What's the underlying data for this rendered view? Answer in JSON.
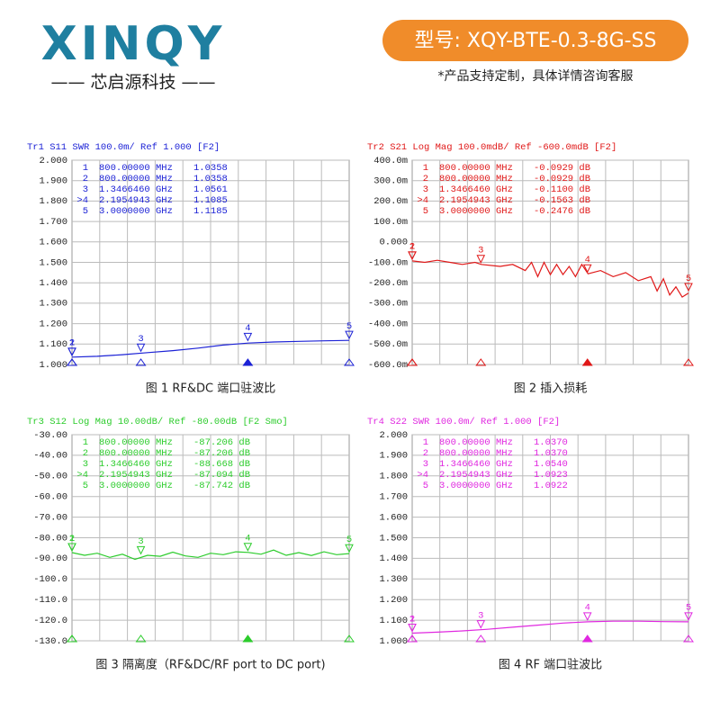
{
  "header": {
    "logo": "XINQY",
    "brand": "—— 芯启源科技 ——",
    "model": "型号: XQY-BTE-0.3-8G-SS",
    "note": "*产品支持定制，具体详情咨询客服"
  },
  "chart_data": [
    {
      "type": "line",
      "title": "Tr1 S11 SWR 100.0m/ Ref 1.000 [F2]",
      "caption": "图 1 RF&DC 端口驻波比",
      "color": "#1c22d6",
      "xlim": [
        0.8,
        3.0
      ],
      "ylim": [
        1.0,
        2.0
      ],
      "yticks": [
        {
          "value": 2.0,
          "label": "2.000"
        },
        {
          "value": 1.9,
          "label": "1.900"
        },
        {
          "value": 1.8,
          "label": "1.800"
        },
        {
          "value": 1.7,
          "label": "1.700"
        },
        {
          "value": 1.6,
          "label": "1.600"
        },
        {
          "value": 1.5,
          "label": "1.500"
        },
        {
          "value": 1.4,
          "label": "1.400"
        },
        {
          "value": 1.3,
          "label": "1.300"
        },
        {
          "value": 1.2,
          "label": "1.200"
        },
        {
          "value": 1.1,
          "label": "1.100"
        },
        {
          "value": 1.0,
          "label": "1.000"
        }
      ],
      "x": [
        0.8,
        1.0,
        1.2,
        1.4,
        1.6,
        1.8,
        2.0,
        2.2,
        2.4,
        2.6,
        2.8,
        3.0
      ],
      "values": [
        1.036,
        1.04,
        1.048,
        1.058,
        1.068,
        1.08,
        1.095,
        1.105,
        1.11,
        1.113,
        1.116,
        1.118
      ],
      "markers": [
        {
          "id": "1",
          "tag": "1",
          "x": 0.8,
          "x_label": "800.00000 MHz",
          "y": 1.0358,
          "y_label": "1.0358"
        },
        {
          "id": "2",
          "tag": "2",
          "x": 0.8,
          "x_label": "800.00000 MHz",
          "y": 1.0358,
          "y_label": "1.0358"
        },
        {
          "id": "3",
          "tag": "3",
          "x": 1.346646,
          "x_label": "1.3466460 GHz",
          "y": 1.0561,
          "y_label": "1.0561"
        },
        {
          "id": ">4",
          "tag": "4",
          "x": 2.1954943,
          "x_label": "2.1954943 GHz",
          "y": 1.1085,
          "y_label": "1.1085"
        },
        {
          "id": "5",
          "tag": "5",
          "x": 3.0,
          "x_label": "3.0000000 GHz",
          "y": 1.1185,
          "y_label": "1.1185"
        }
      ]
    },
    {
      "type": "line",
      "title": "Tr2 S21 Log Mag 100.0mdB/ Ref -600.0mdB [F2]",
      "caption": "图 2 插入损耗",
      "color": "#e01818",
      "xlim": [
        0.8,
        3.0
      ],
      "ylim": [
        -0.6,
        0.4
      ],
      "yticks": [
        {
          "value": 0.4,
          "label": "400.0m"
        },
        {
          "value": 0.3,
          "label": "300.0m"
        },
        {
          "value": 0.2,
          "label": "200.0m"
        },
        {
          "value": 0.1,
          "label": "100.0m"
        },
        {
          "value": 0,
          "label": "0.000"
        },
        {
          "value": -0.1,
          "label": "-100.0m"
        },
        {
          "value": -0.2,
          "label": "-200.0m"
        },
        {
          "value": -0.3,
          "label": "-300.0m"
        },
        {
          "value": -0.4,
          "label": "-400.0m"
        },
        {
          "value": -0.5,
          "label": "-500.0m"
        },
        {
          "value": -0.6,
          "label": "-600.0m"
        }
      ],
      "x": [
        0.8,
        0.9,
        1.0,
        1.1,
        1.2,
        1.3,
        1.35,
        1.5,
        1.6,
        1.7,
        1.75,
        1.8,
        1.85,
        1.9,
        1.95,
        2.0,
        2.05,
        2.1,
        2.15,
        2.2,
        2.3,
        2.4,
        2.5,
        2.6,
        2.7,
        2.75,
        2.8,
        2.85,
        2.9,
        2.95,
        3.0
      ],
      "values": [
        -0.093,
        -0.1,
        -0.09,
        -0.1,
        -0.11,
        -0.1,
        -0.11,
        -0.12,
        -0.11,
        -0.14,
        -0.1,
        -0.17,
        -0.1,
        -0.16,
        -0.11,
        -0.16,
        -0.12,
        -0.17,
        -0.11,
        -0.156,
        -0.14,
        -0.17,
        -0.15,
        -0.19,
        -0.17,
        -0.24,
        -0.18,
        -0.26,
        -0.22,
        -0.27,
        -0.25
      ],
      "markers": [
        {
          "id": "1",
          "tag": "1",
          "x": 0.8,
          "x_label": "800.00000 MHz",
          "y": -0.0929,
          "y_label": "-0.0929 dB"
        },
        {
          "id": "2",
          "tag": "2",
          "x": 0.8,
          "x_label": "800.00000 MHz",
          "y": -0.0929,
          "y_label": "-0.0929 dB"
        },
        {
          "id": "3",
          "tag": "3",
          "x": 1.346646,
          "x_label": "1.3466460 GHz",
          "y": -0.11,
          "y_label": "-0.1100 dB"
        },
        {
          "id": ">4",
          "tag": "4",
          "x": 2.1954943,
          "x_label": "2.1954943 GHz",
          "y": -0.1563,
          "y_label": "-0.1563 dB"
        },
        {
          "id": "5",
          "tag": "5",
          "x": 3.0,
          "x_label": "3.0000000 GHz",
          "y": -0.2476,
          "y_label": "-0.2476 dB"
        }
      ]
    },
    {
      "type": "line",
      "title": "Tr3 S12 Log Mag 10.00dB/ Ref -80.00dB [F2 Smo]",
      "caption": "图 3  隔离度（RF&DC/RF port to DC port)",
      "color": "#2ccc2c",
      "xlim": [
        0.8,
        3.0
      ],
      "ylim": [
        -130,
        -30
      ],
      "yticks": [
        {
          "value": -30,
          "label": "-30.00"
        },
        {
          "value": -40,
          "label": "-40.00"
        },
        {
          "value": -50,
          "label": "-50.00"
        },
        {
          "value": -60,
          "label": "-60.00"
        },
        {
          "value": -70,
          "label": "-70.00"
        },
        {
          "value": -80,
          "label": "-80.00"
        },
        {
          "value": -90,
          "label": "-90.00"
        },
        {
          "value": -100,
          "label": "-100.0"
        },
        {
          "value": -110,
          "label": "-110.0"
        },
        {
          "value": -120,
          "label": "-120.0"
        },
        {
          "value": -130,
          "label": "-130.0"
        }
      ],
      "x": [
        0.8,
        0.9,
        1.0,
        1.1,
        1.2,
        1.3,
        1.4,
        1.5,
        1.6,
        1.7,
        1.8,
        1.9,
        2.0,
        2.1,
        2.2,
        2.3,
        2.4,
        2.5,
        2.6,
        2.7,
        2.8,
        2.9,
        3.0
      ],
      "values": [
        -87.2,
        -88.5,
        -87.5,
        -89.5,
        -88.0,
        -90.5,
        -88.5,
        -89.0,
        -87.0,
        -88.8,
        -89.5,
        -87.5,
        -88.2,
        -86.8,
        -87.1,
        -88.0,
        -86.0,
        -88.5,
        -87.2,
        -88.6,
        -86.8,
        -88.2,
        -87.7
      ],
      "markers": [
        {
          "id": "1",
          "tag": "1",
          "x": 0.8,
          "x_label": "800.00000 MHz",
          "y": -87.206,
          "y_label": "-87.206 dB"
        },
        {
          "id": "2",
          "tag": "2",
          "x": 0.8,
          "x_label": "800.00000 MHz",
          "y": -87.206,
          "y_label": "-87.206 dB"
        },
        {
          "id": "3",
          "tag": "3",
          "x": 1.346646,
          "x_label": "1.3466460 GHz",
          "y": -88.668,
          "y_label": "-88.668 dB"
        },
        {
          "id": ">4",
          "tag": "4",
          "x": 2.1954943,
          "x_label": "2.1954943 GHz",
          "y": -87.094,
          "y_label": "-87.094 dB"
        },
        {
          "id": "5",
          "tag": "5",
          "x": 3.0,
          "x_label": "3.0000000 GHz",
          "y": -87.742,
          "y_label": "-87.742 dB"
        }
      ]
    },
    {
      "type": "line",
      "title": "Tr4 S22 SWR 100.0m/ Ref 1.000 [F2]",
      "caption": "图 4 RF 端口驻波比",
      "color": "#e028e0",
      "xlim": [
        0.8,
        3.0
      ],
      "ylim": [
        1.0,
        2.0
      ],
      "yticks": [
        {
          "value": 2.0,
          "label": "2.000"
        },
        {
          "value": 1.9,
          "label": "1.900"
        },
        {
          "value": 1.8,
          "label": "1.800"
        },
        {
          "value": 1.7,
          "label": "1.700"
        },
        {
          "value": 1.6,
          "label": "1.600"
        },
        {
          "value": 1.5,
          "label": "1.500"
        },
        {
          "value": 1.4,
          "label": "1.400"
        },
        {
          "value": 1.3,
          "label": "1.300"
        },
        {
          "value": 1.2,
          "label": "1.200"
        },
        {
          "value": 1.1,
          "label": "1.100"
        },
        {
          "value": 1.0,
          "label": "1.000"
        }
      ],
      "x": [
        0.8,
        1.0,
        1.2,
        1.4,
        1.6,
        1.8,
        2.0,
        2.2,
        2.4,
        2.6,
        2.8,
        3.0
      ],
      "values": [
        1.037,
        1.042,
        1.048,
        1.056,
        1.066,
        1.076,
        1.086,
        1.092,
        1.095,
        1.095,
        1.093,
        1.092
      ],
      "markers": [
        {
          "id": "1",
          "tag": "1",
          "x": 0.8,
          "x_label": "800.00000 MHz",
          "y": 1.037,
          "y_label": "1.0370"
        },
        {
          "id": "2",
          "tag": "2",
          "x": 0.8,
          "x_label": "800.00000 MHz",
          "y": 1.037,
          "y_label": "1.0370"
        },
        {
          "id": "3",
          "tag": "3",
          "x": 1.346646,
          "x_label": "1.3466460 GHz",
          "y": 1.054,
          "y_label": "1.0540"
        },
        {
          "id": ">4",
          "tag": "4",
          "x": 2.1954943,
          "x_label": "2.1954943 GHz",
          "y": 1.0923,
          "y_label": "1.0923"
        },
        {
          "id": "5",
          "tag": "5",
          "x": 3.0,
          "x_label": "3.0000000 GHz",
          "y": 1.0922,
          "y_label": "1.0922"
        }
      ]
    }
  ]
}
